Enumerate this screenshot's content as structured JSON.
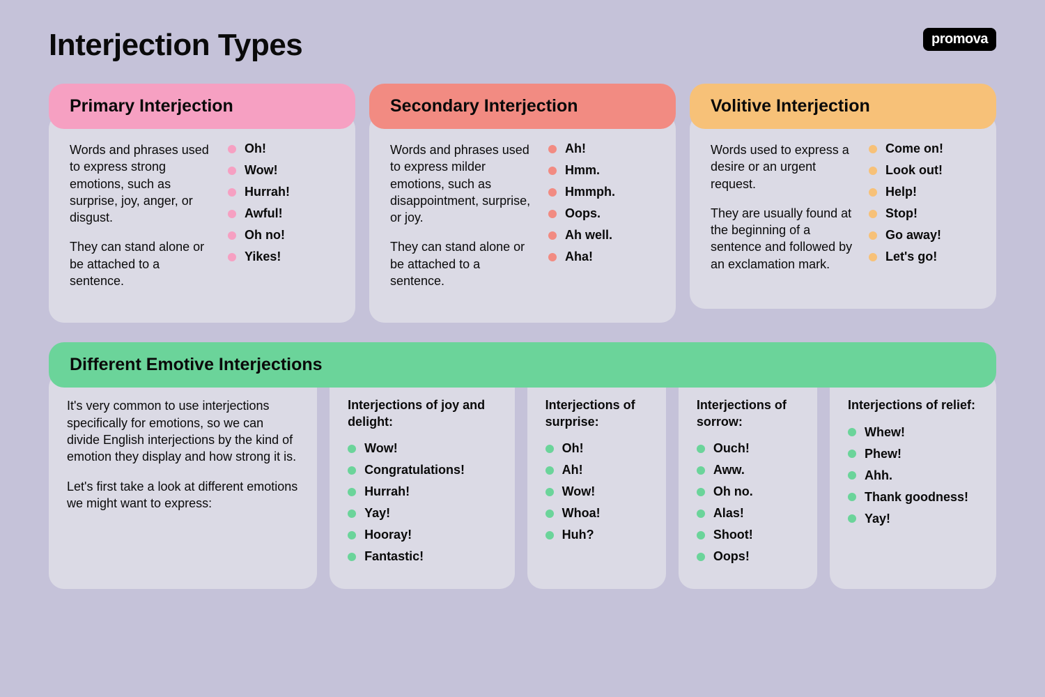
{
  "brand": "promova",
  "title": "Interjection Types",
  "colors": {
    "pink": "#f6a0c2",
    "pink_bullet": "#f6a0c2",
    "coral": "#f28b82",
    "coral_bullet": "#f28b82",
    "orange": "#f7c178",
    "orange_bullet": "#f7c178",
    "green": "#6bd49a",
    "green_bullet": "#6bd49a"
  },
  "top_cards": [
    {
      "header": "Primary Interjection",
      "color_key": "pink",
      "bullet_key": "pink_bullet",
      "desc": [
        "Words and phrases used to express strong emotions, such as surprise, joy, anger, or disgust.",
        "They can stand alone or be attached to a sentence."
      ],
      "examples": [
        "Oh!",
        "Wow!",
        "Hurrah!",
        "Awful!",
        "Oh no!",
        "Yikes!"
      ]
    },
    {
      "header": "Secondary Interjection",
      "color_key": "coral",
      "bullet_key": "coral_bullet",
      "desc": [
        "Words and phrases used to express milder emotions, such as disappointment, surprise, or joy.",
        "They can stand alone or be attached to a sentence."
      ],
      "examples": [
        "Ah!",
        "Hmm.",
        "Hmmph.",
        "Oops.",
        "Ah well.",
        "Aha!"
      ]
    },
    {
      "header": "Volitive Interjection",
      "color_key": "orange",
      "bullet_key": "orange_bullet",
      "desc": [
        "Words used to express a desire or an urgent request.",
        "They are usually found at the beginning of a sentence and followed by an exclamation mark."
      ],
      "examples": [
        "Come on!",
        "Look out!",
        "Help!",
        "Stop!",
        "Go away!",
        "Let's go!"
      ]
    }
  ],
  "emotive": {
    "header": "Different Emotive Interjections",
    "color_key": "green",
    "bullet_key": "green_bullet",
    "intro": [
      "It's very common to use interjections specifically for emotions, so we can divide English interjections by the kind of emotion they display and how strong it is.",
      "Let's first take a look at different emotions we might want to express:"
    ],
    "groups": [
      {
        "title": "Interjections of joy and delight:",
        "examples": [
          "Wow!",
          "Congratulations!",
          "Hurrah!",
          "Yay!",
          "Hooray!",
          "Fantastic!"
        ]
      },
      {
        "title": "Interjections of surprise:",
        "examples": [
          "Oh!",
          "Ah!",
          "Wow!",
          "Whoa!",
          "Huh?"
        ]
      },
      {
        "title": "Interjections of sorrow:",
        "examples": [
          "Ouch!",
          "Aww.",
          "Oh no.",
          "Alas!",
          "Shoot!",
          "Oops!"
        ]
      },
      {
        "title": "Interjections of relief:",
        "examples": [
          "Whew!",
          "Phew!",
          "Ahh.",
          "Thank goodness!",
          "Yay!"
        ]
      }
    ]
  }
}
